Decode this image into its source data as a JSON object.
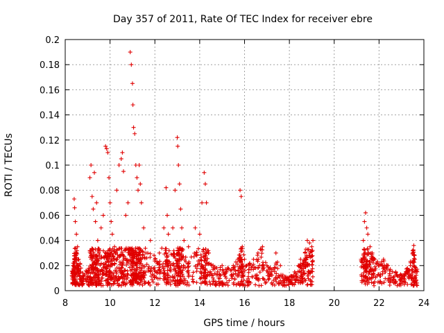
{
  "chart_data": {
    "type": "scatter",
    "title": "Day 357 of 2011, Rate Of TEC Index for receiver ebre",
    "xlabel": "GPS time / hours",
    "ylabel": "ROTI / TECUs",
    "xlim": [
      8,
      24
    ],
    "ylim": [
      0,
      0.2
    ],
    "xticks": [
      8,
      10,
      12,
      14,
      16,
      18,
      20,
      22,
      24
    ],
    "yticks": [
      0,
      0.02,
      0.04,
      0.06,
      0.08,
      0.1,
      0.12,
      0.14,
      0.16,
      0.18,
      0.2
    ],
    "xtick_labels": [
      "8",
      "10",
      "12",
      "14",
      "16",
      "18",
      "20",
      "22",
      "24"
    ],
    "ytick_labels": [
      "0",
      "0.02",
      "0.04",
      "0.06",
      "0.08",
      "0.1",
      "0.12",
      "0.14",
      "0.16",
      "0.18",
      "0.2"
    ],
    "marker": "+",
    "marker_color": "#e00000",
    "grid": true,
    "data_gap_hours": [
      19.1,
      21.2
    ],
    "series": [
      {
        "name": "ROTI",
        "points": [
          [
            8.3,
            0.012
          ],
          [
            8.35,
            0.02
          ],
          [
            8.4,
            0.073
          ],
          [
            8.42,
            0.066
          ],
          [
            8.45,
            0.055
          ],
          [
            8.5,
            0.045
          ],
          [
            8.55,
            0.035
          ],
          [
            8.6,
            0.025
          ],
          [
            8.7,
            0.018
          ],
          [
            8.8,
            0.012
          ],
          [
            9.0,
            0.015
          ],
          [
            9.1,
            0.09
          ],
          [
            9.15,
            0.1
          ],
          [
            9.2,
            0.075
          ],
          [
            9.25,
            0.065
          ],
          [
            9.3,
            0.094
          ],
          [
            9.35,
            0.055
          ],
          [
            9.4,
            0.07
          ],
          [
            9.45,
            0.04
          ],
          [
            9.5,
            0.03
          ],
          [
            9.6,
            0.05
          ],
          [
            9.7,
            0.06
          ],
          [
            9.8,
            0.115
          ],
          [
            9.85,
            0.113
          ],
          [
            9.9,
            0.11
          ],
          [
            9.95,
            0.09
          ],
          [
            10.0,
            0.07
          ],
          [
            10.05,
            0.055
          ],
          [
            10.1,
            0.045
          ],
          [
            10.2,
            0.035
          ],
          [
            10.3,
            0.08
          ],
          [
            10.4,
            0.1
          ],
          [
            10.5,
            0.105
          ],
          [
            10.55,
            0.11
          ],
          [
            10.6,
            0.095
          ],
          [
            10.7,
            0.06
          ],
          [
            10.8,
            0.07
          ],
          [
            10.9,
            0.19
          ],
          [
            10.95,
            0.18
          ],
          [
            11.0,
            0.165
          ],
          [
            11.02,
            0.148
          ],
          [
            11.05,
            0.13
          ],
          [
            11.1,
            0.125
          ],
          [
            11.15,
            0.1
          ],
          [
            11.2,
            0.09
          ],
          [
            11.25,
            0.08
          ],
          [
            11.3,
            0.1
          ],
          [
            11.35,
            0.085
          ],
          [
            11.4,
            0.07
          ],
          [
            11.5,
            0.05
          ],
          [
            11.6,
            0.03
          ],
          [
            11.8,
            0.04
          ],
          [
            12.0,
            0.025
          ],
          [
            12.2,
            0.03
          ],
          [
            12.4,
            0.05
          ],
          [
            12.5,
            0.082
          ],
          [
            12.55,
            0.06
          ],
          [
            12.6,
            0.045
          ],
          [
            12.8,
            0.05
          ],
          [
            12.9,
            0.08
          ],
          [
            13.0,
            0.122
          ],
          [
            13.02,
            0.115
          ],
          [
            13.05,
            0.1
          ],
          [
            13.1,
            0.085
          ],
          [
            13.15,
            0.065
          ],
          [
            13.2,
            0.05
          ],
          [
            13.3,
            0.04
          ],
          [
            13.5,
            0.035
          ],
          [
            13.8,
            0.05
          ],
          [
            14.0,
            0.045
          ],
          [
            14.1,
            0.07
          ],
          [
            14.2,
            0.094
          ],
          [
            14.25,
            0.085
          ],
          [
            14.3,
            0.07
          ],
          [
            14.4,
            0.03
          ],
          [
            14.6,
            0.02
          ],
          [
            14.8,
            0.015
          ],
          [
            15.0,
            0.02
          ],
          [
            15.2,
            0.015
          ],
          [
            15.5,
            0.02
          ],
          [
            15.7,
            0.025
          ],
          [
            15.8,
            0.08
          ],
          [
            15.85,
            0.075
          ],
          [
            15.9,
            0.035
          ],
          [
            16.0,
            0.025
          ],
          [
            16.2,
            0.02
          ],
          [
            16.4,
            0.025
          ],
          [
            16.6,
            0.03
          ],
          [
            16.8,
            0.035
          ],
          [
            17.0,
            0.02
          ],
          [
            17.2,
            0.015
          ],
          [
            17.4,
            0.03
          ],
          [
            17.6,
            0.02
          ],
          [
            17.8,
            0.01
          ],
          [
            18.0,
            0.008
          ],
          [
            18.2,
            0.012
          ],
          [
            18.4,
            0.02
          ],
          [
            18.5,
            0.025
          ],
          [
            18.6,
            0.022
          ],
          [
            18.7,
            0.03
          ],
          [
            18.8,
            0.04
          ],
          [
            18.9,
            0.038
          ],
          [
            19.0,
            0.035
          ],
          [
            19.05,
            0.04
          ],
          [
            21.2,
            0.025
          ],
          [
            21.3,
            0.04
          ],
          [
            21.35,
            0.055
          ],
          [
            21.4,
            0.062
          ],
          [
            21.45,
            0.05
          ],
          [
            21.5,
            0.045
          ],
          [
            21.6,
            0.035
          ],
          [
            21.7,
            0.03
          ],
          [
            21.8,
            0.025
          ],
          [
            22.0,
            0.02
          ],
          [
            22.2,
            0.025
          ],
          [
            22.4,
            0.02
          ],
          [
            22.6,
            0.015
          ],
          [
            22.8,
            0.012
          ],
          [
            23.0,
            0.01
          ],
          [
            23.2,
            0.015
          ],
          [
            23.4,
            0.02
          ],
          [
            23.5,
            0.03
          ],
          [
            23.55,
            0.036
          ],
          [
            23.6,
            0.025
          ],
          [
            23.7,
            0.015
          ]
        ]
      }
    ]
  }
}
